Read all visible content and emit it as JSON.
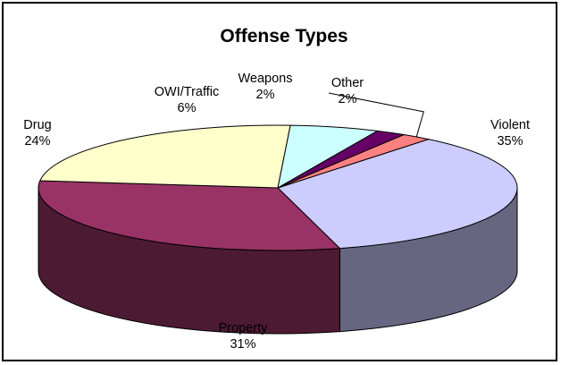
{
  "chart_data": {
    "type": "pie",
    "title": "Offense Types",
    "slices": [
      {
        "label": "Violent",
        "percent_label": "35%",
        "value": 35,
        "color": "#ccccff"
      },
      {
        "label": "Property",
        "percent_label": "31%",
        "value": 31,
        "color": "#993366"
      },
      {
        "label": "Drug",
        "percent_label": "24%",
        "value": 24,
        "color": "#ffffcc"
      },
      {
        "label": "OWI/Traffic",
        "percent_label": "6%",
        "value": 6,
        "color": "#ccffff"
      },
      {
        "label": "Weapons",
        "percent_label": "2%",
        "value": 2,
        "color": "#660066"
      },
      {
        "label": "Other",
        "percent_label": "2%",
        "value": 2,
        "color": "#ff8080"
      }
    ],
    "legend": "none",
    "style": "3d-pie"
  }
}
